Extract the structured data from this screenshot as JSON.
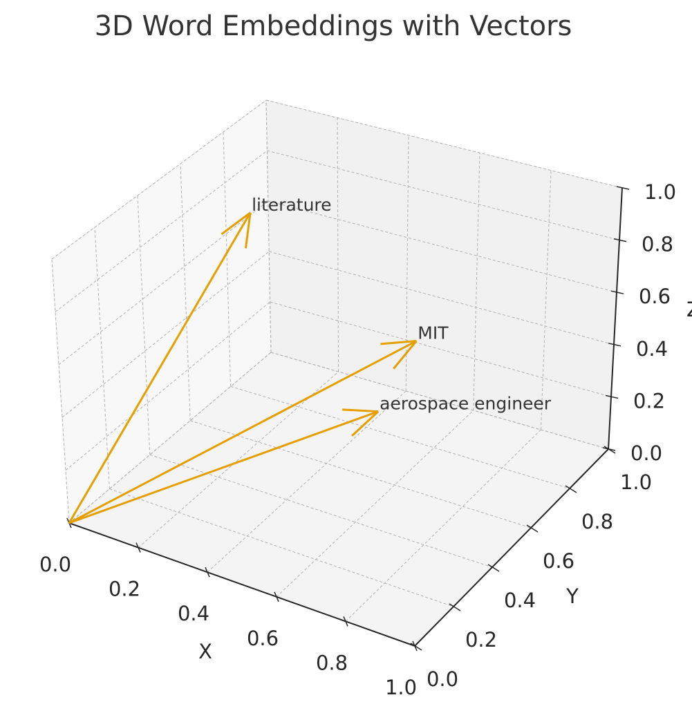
{
  "chart_data": {
    "type": "quiver3d",
    "title": "3D Word Embeddings with Vectors",
    "xlabel": "X",
    "ylabel": "Y",
    "zlabel": "Z",
    "xlim": [
      0,
      1
    ],
    "ylim": [
      0,
      1
    ],
    "zlim": [
      0,
      1
    ],
    "xticks": [
      {
        "value": 0,
        "label": "0.0"
      },
      {
        "value": 0.2,
        "label": "0.2"
      },
      {
        "value": 0.4,
        "label": "0.4"
      },
      {
        "value": 0.6,
        "label": "0.6"
      },
      {
        "value": 0.8,
        "label": "0.8"
      },
      {
        "value": 1,
        "label": "1.0"
      }
    ],
    "yticks": [
      {
        "value": 0,
        "label": "0.0"
      },
      {
        "value": 0.2,
        "label": "0.2"
      },
      {
        "value": 0.4,
        "label": "0.4"
      },
      {
        "value": 0.6,
        "label": "0.6"
      },
      {
        "value": 0.8,
        "label": "0.8"
      },
      {
        "value": 1,
        "label": "1.0"
      }
    ],
    "zticks": [
      {
        "value": 0,
        "label": "0.0"
      },
      {
        "value": 0.2,
        "label": "0.2"
      },
      {
        "value": 0.4,
        "label": "0.4"
      },
      {
        "value": 0.6,
        "label": "0.6"
      },
      {
        "value": 0.8,
        "label": "0.8"
      },
      {
        "value": 1,
        "label": "1.0"
      }
    ],
    "grid": true,
    "color": "#e69f00",
    "origin": {
      "x": 0,
      "y": 0,
      "z": 0
    },
    "vectors": [
      {
        "name": "literature",
        "x": 0.25,
        "y": 0.5,
        "z": 0.97
      },
      {
        "name": "MIT",
        "x": 0.6,
        "y": 0.7,
        "z": 0.48
      },
      {
        "name": "aerospace engineer",
        "x": 0.55,
        "y": 0.6,
        "z": 0.26
      }
    ]
  }
}
